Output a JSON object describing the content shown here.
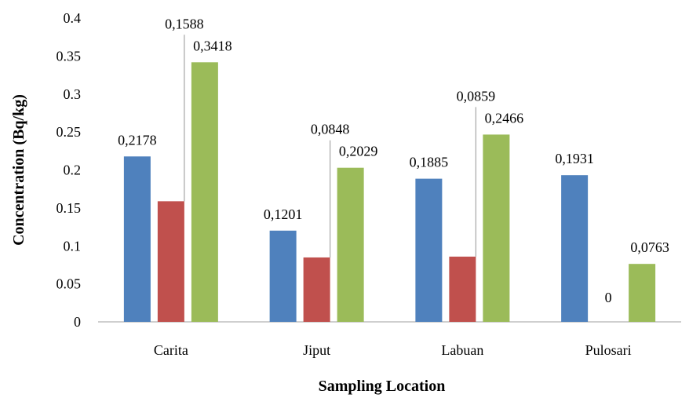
{
  "chart_data": {
    "type": "bar",
    "title": "",
    "xlabel": "Sampling Location",
    "ylabel": "Concentration (Bq/kg)",
    "categories": [
      "Carita",
      "Jiput",
      "Labuan",
      "Pulosari"
    ],
    "ylim": [
      0,
      0.4
    ],
    "y_ticks": [
      0,
      0.05,
      0.1,
      0.15,
      0.2,
      0.25,
      0.3,
      0.35,
      0.4
    ],
    "y_tick_labels": [
      "0",
      "0.05",
      "0.1",
      "0.15",
      "0.2",
      "0.25",
      "0.3",
      "0.35",
      "0.4"
    ],
    "grid": false,
    "legend": "none",
    "series": [
      {
        "values": [
          0.2178,
          0.1201,
          0.1885,
          0.1931
        ],
        "labels": [
          "0,2178",
          "0,1201",
          "0,1885",
          "0,1931"
        ],
        "color": "#4f81bd"
      },
      {
        "values": [
          0.1588,
          0.0848,
          0.0859,
          0
        ],
        "labels": [
          "0,1588",
          "0,0848",
          "0,0859",
          "0"
        ],
        "color": "#c0504d"
      },
      {
        "values": [
          0.3418,
          0.2029,
          0.2466,
          0.0763
        ],
        "labels": [
          "0,3418",
          "0,2029",
          "0,2466",
          "0,0763"
        ],
        "color": "#9bbb59"
      }
    ]
  }
}
